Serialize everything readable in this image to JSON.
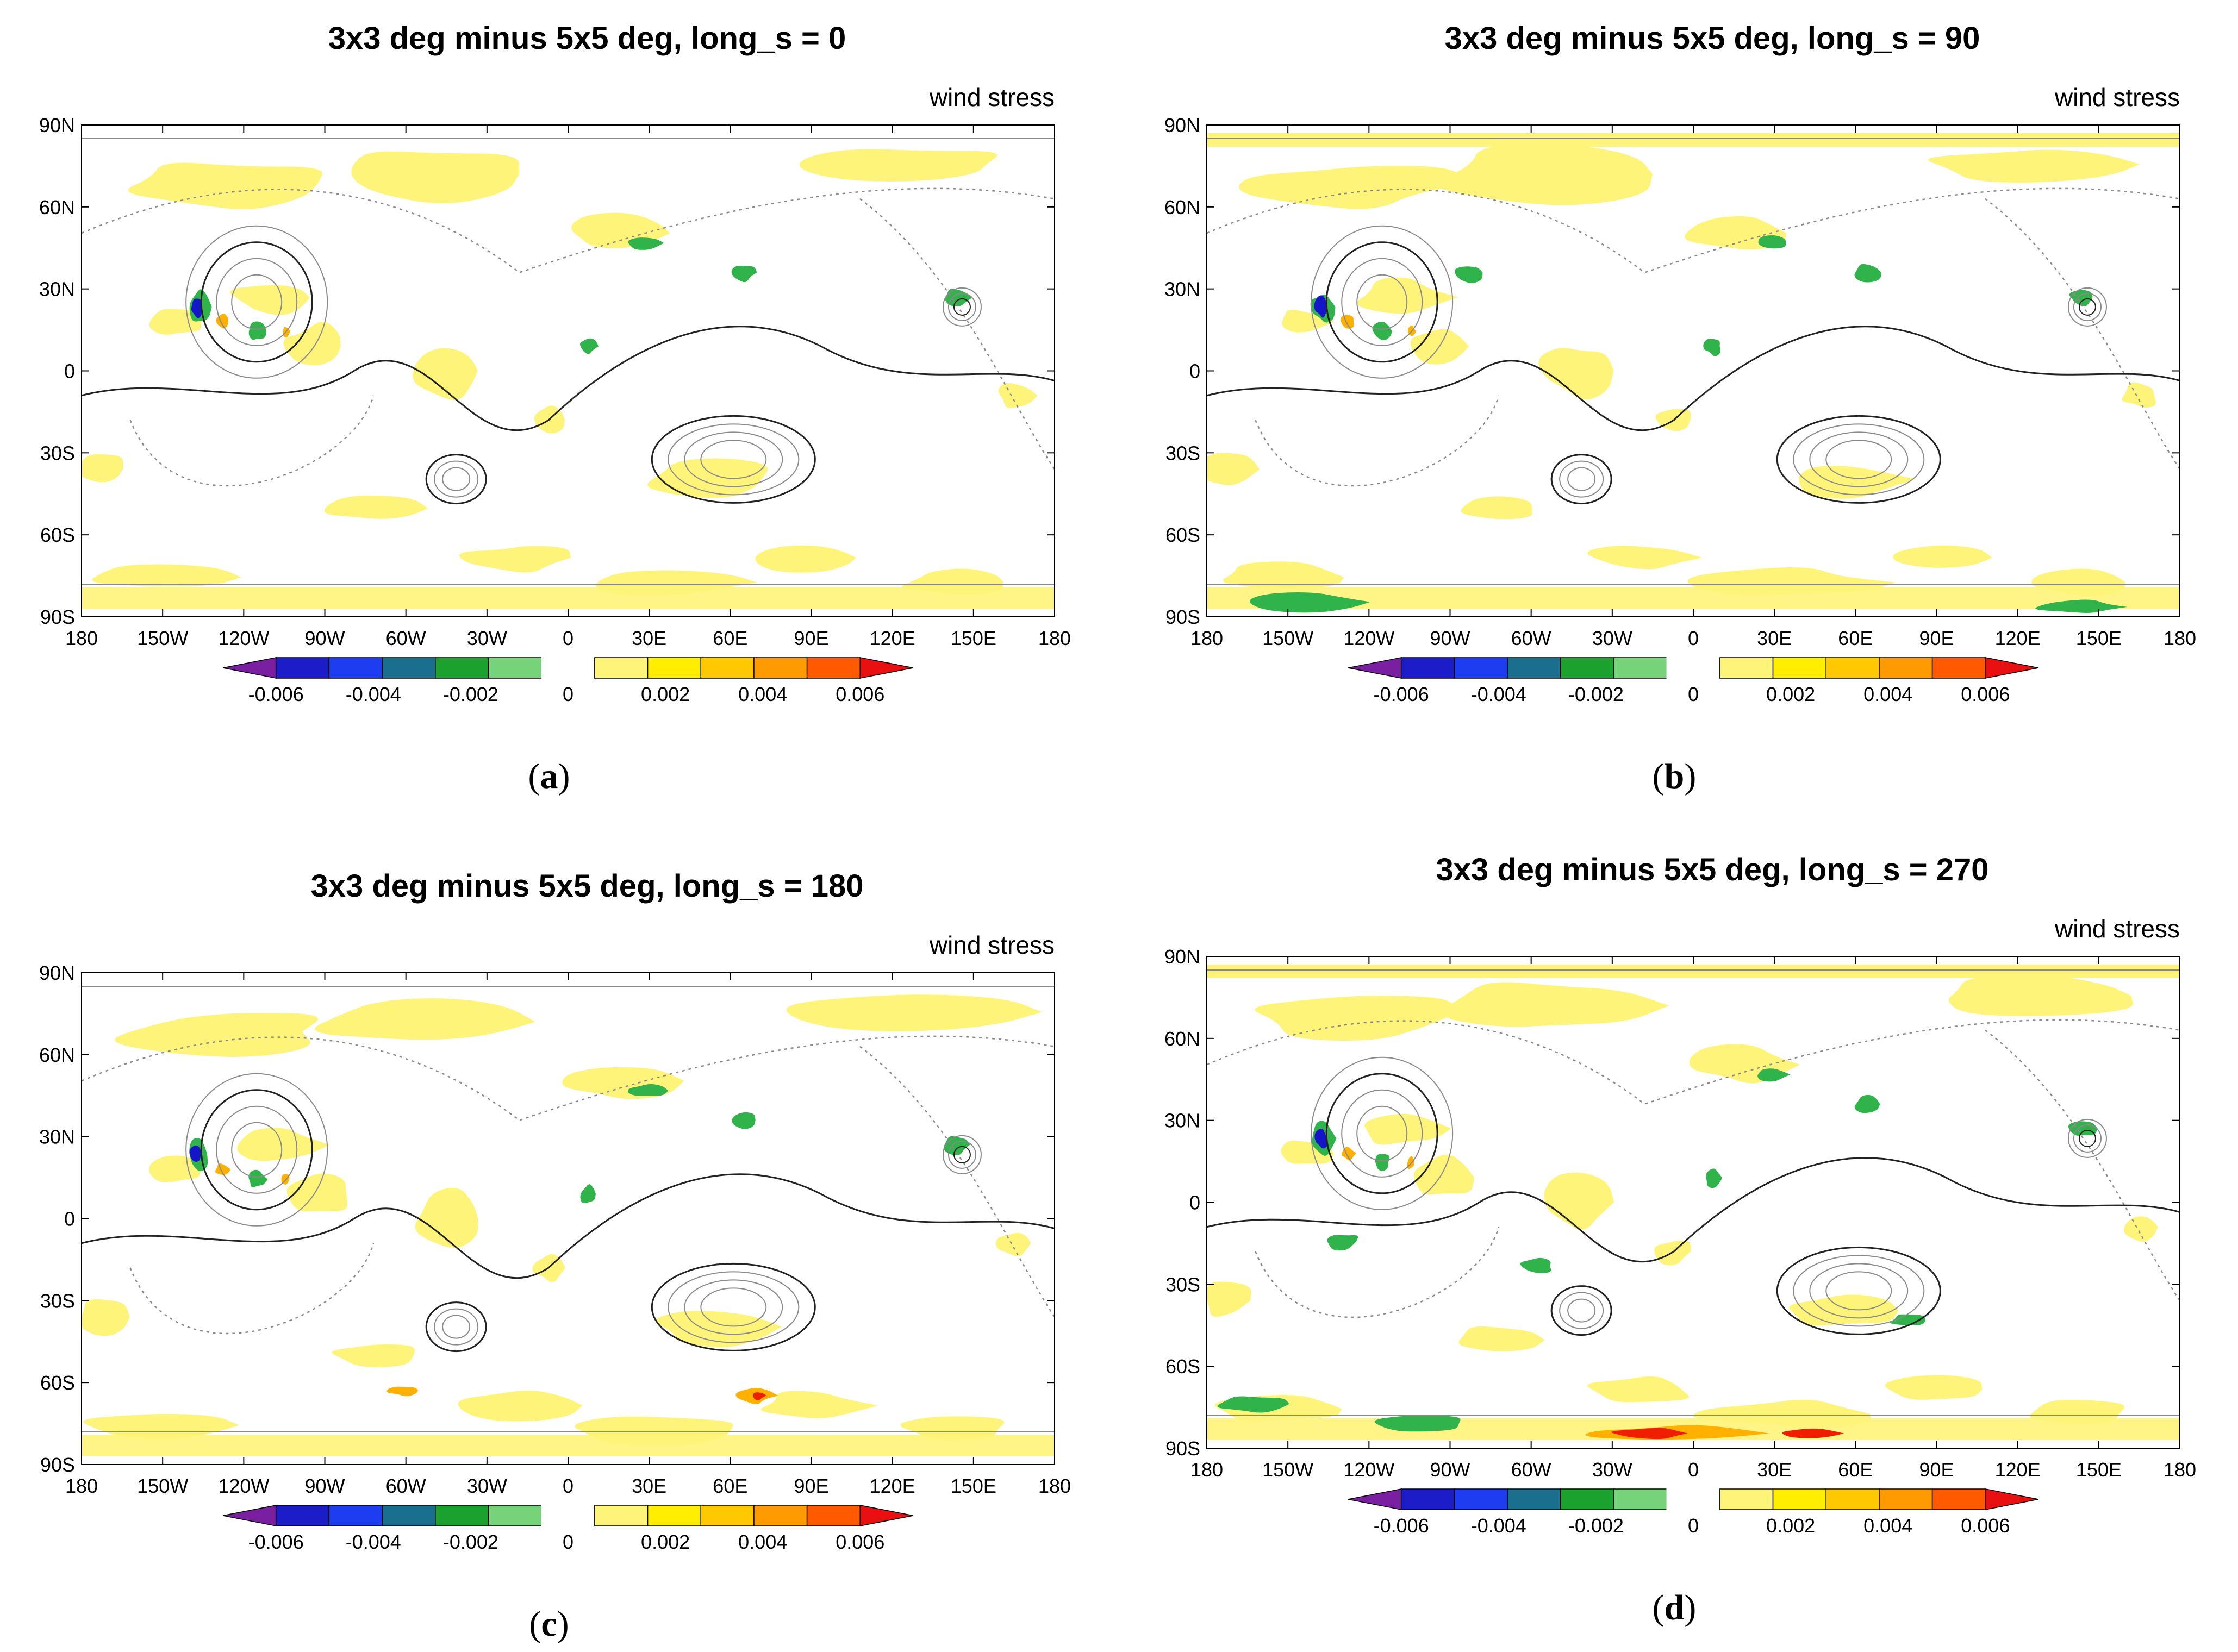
{
  "figure": {
    "variable_label": "wind stress",
    "axes": {
      "lon_ticks": [
        "180",
        "150W",
        "120W",
        "90W",
        "60W",
        "30W",
        "0",
        "30E",
        "60E",
        "90E",
        "120E",
        "150E",
        "180"
      ],
      "lat_ticks": [
        "90N",
        "60N",
        "30N",
        "0",
        "30S",
        "60S",
        "90S"
      ]
    },
    "colorbar": {
      "tick_labels": [
        "-0.006",
        "-0.004",
        "-0.002",
        "0",
        "0.002",
        "0.004",
        "0.006"
      ],
      "colors": [
        "#7B1FA2",
        "#1C1CC8",
        "#1E3CF0",
        "#1A6E8E",
        "#1BA12D",
        "#76D37A",
        "#FFFFFF",
        "#FFF47A",
        "#FFEE00",
        "#FFC800",
        "#FF9A00",
        "#FF5A00",
        "#E81010"
      ]
    },
    "colors": {
      "yellow": "#FFF47A",
      "green": "#2FB34A",
      "orange": "#FFB000",
      "red": "#F01E00",
      "blue": "#1414C8",
      "contour": "#222222",
      "dashed": "#8A8A8A"
    }
  },
  "panels": [
    {
      "id": "a",
      "title": "3x3 deg minus 5x5 deg, long_s = 0",
      "caption_letter": "a"
    },
    {
      "id": "b",
      "title": "3x3 deg minus 5x5 deg, long_s = 90",
      "caption_letter": "b"
    },
    {
      "id": "c",
      "title": "3x3 deg minus 5x5 deg, long_s = 180",
      "caption_letter": "c"
    },
    {
      "id": "d",
      "title": "3x3 deg minus 5x5 deg, long_s = 270",
      "caption_letter": "d"
    }
  ]
}
